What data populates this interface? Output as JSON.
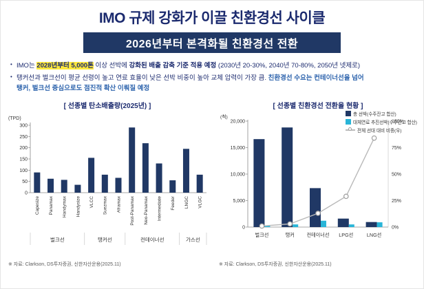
{
  "page": {
    "title": "IMO 규제 강화가 이끌 친환경선 사이클",
    "banner": "2026년부터 본격화될 친환경선 전환",
    "accent_navy": "#203865",
    "accent_cyan": "#29b5d8",
    "highlight_yellow": "#ffe83d",
    "emphasis_blue": "#2e64ad"
  },
  "bullets": {
    "b1_pre": "IMO는 ",
    "b1_highlight": "2028년부터 5,000톤",
    "b1_mid": " 이상 선박에 ",
    "b1_bold": "강화된 배출 감축 기준 적용 예정",
    "b1_post": " (2030년 20-30%, 2040년 70-80%, 2050년 넷제로)",
    "b2_normal": "탱커선과 벌크선이 평균 선령이 높고 연료 효율이 낮은 선박 비중이 높아 교체 압력이 가장 큼. ",
    "b2_blue1": "친환경선 수요는 컨테이너선을 넘어",
    "b2_blue2": "탱커, 벌크선 중심으로도 점진적 확산 이뤄질 예정"
  },
  "left_panel": {
    "title": "[ 선종별 탄소배출량(2025년) ]",
    "footnote": "※ 자료: Clarkson, DS투자증권, 신한자산운용(2025.11)"
  },
  "right_panel": {
    "title": "[ 선종별 친환경선 전환율 현황 ]",
    "footnote": "※ 자료: Clarkson, DS투자증권, 신한자산운용(2025.11)"
  },
  "chart_data": [
    {
      "id": "emissions",
      "type": "bar",
      "title": "[ 선종별 탄소배출량(2025년) ]",
      "ylabel": "(TPD)",
      "ylim": [
        0,
        300
      ],
      "ytick_step": 50,
      "grid": false,
      "bar_color": "#203865",
      "categories": [
        "Capesize",
        "Panamax",
        "Handymax",
        "Handysize",
        "VLCC",
        "Suezmax",
        "Aframax",
        "Post-Panamax",
        "Neo-Panamax",
        "Intermediate",
        "Feeder",
        "LNGC",
        "VLGC"
      ],
      "values": [
        90,
        62,
        57,
        35,
        155,
        80,
        66,
        290,
        220,
        130,
        55,
        195,
        80
      ],
      "groups": [
        {
          "label": "벌크선",
          "from": 0,
          "to": 3
        },
        {
          "label": "탱커선",
          "from": 4,
          "to": 6
        },
        {
          "label": "컨테이너선",
          "from": 7,
          "to": 10
        },
        {
          "label": "가스선",
          "from": 11,
          "to": 12
        }
      ]
    },
    {
      "id": "conversion",
      "type": "bar+line",
      "title": "[ 선종별 친환경선 전환율 현황 ]",
      "ylabel_left": "(척)",
      "ylim_left": [
        0,
        20000
      ],
      "ytick_step_left": 5000,
      "ylim_right": [
        0,
        100
      ],
      "ytick_step_right": 25,
      "ytick_suffix_right": "%",
      "grid": false,
      "legend_position": "top-right",
      "categories": [
        "벌크선",
        "탱커",
        "컨테이너선",
        "LPG선",
        "LNG선"
      ],
      "series": [
        {
          "name": "총 선박(수주잔고 합산)",
          "type": "bar",
          "axis": "left",
          "color": "#203865",
          "values": [
            16600,
            18800,
            7350,
            1600,
            950
          ]
        },
        {
          "name": "대체연료 추진선박(수주잔고 합산)",
          "type": "bar",
          "axis": "left",
          "color": "#29b5d8",
          "values": [
            300,
            500,
            1200,
            500,
            900
          ]
        },
        {
          "name": "전체 선대 대비 비중(우)",
          "type": "line",
          "axis": "right",
          "color": "#b9b9b9",
          "values": [
            1,
            3,
            13,
            29,
            84
          ]
        }
      ]
    }
  ]
}
